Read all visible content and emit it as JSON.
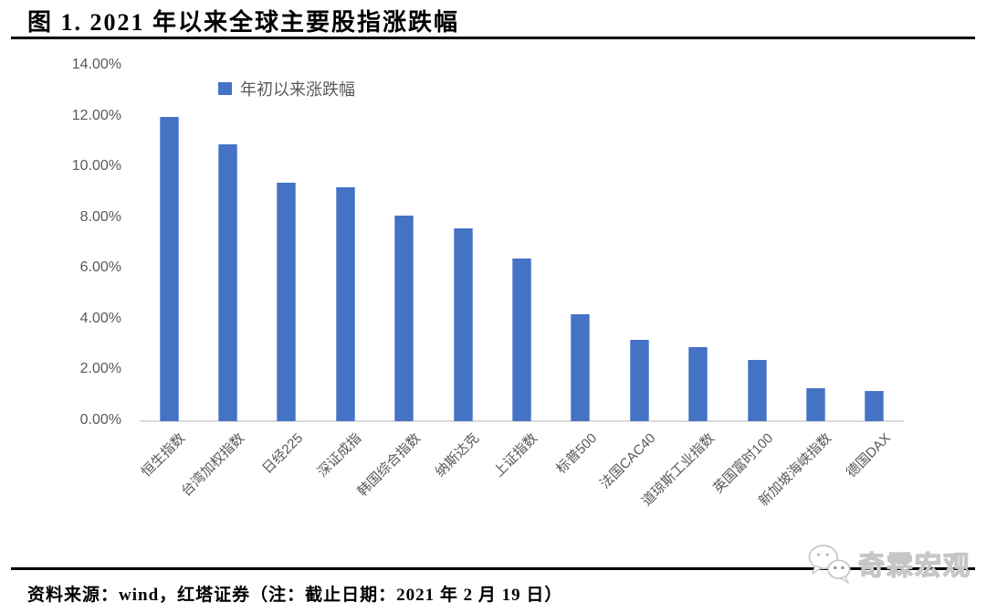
{
  "title": "图 1. 2021 年以来全球主要股指涨跌幅",
  "chart_data": {
    "type": "bar",
    "title": "图 1. 2021 年以来全球主要股指涨跌幅",
    "legend": "年初以来涨跌幅",
    "legend_position": "top",
    "bar_color": "#4472C4",
    "categories": [
      "恒生指数",
      "台湾加权指数",
      "日经225",
      "深证成指",
      "韩国综合指数",
      "纳斯达克",
      "上证指数",
      "标普500",
      "法国CAC40",
      "道琼斯工业指数",
      "英国富时100",
      "新加坡海峡指数",
      "德国DAX"
    ],
    "values": [
      12.0,
      10.9,
      9.4,
      9.2,
      8.1,
      7.6,
      6.4,
      4.2,
      3.2,
      2.9,
      2.4,
      1.3,
      1.2
    ],
    "unit": "%",
    "xlabel": "",
    "ylabel": "",
    "ylim": [
      0,
      14
    ],
    "y_tick_step": 2,
    "y_ticks": [
      "0.00%",
      "2.00%",
      "4.00%",
      "6.00%",
      "8.00%",
      "10.00%",
      "12.00%",
      "14.00%"
    ],
    "grid": false,
    "x_label_rotation": 45
  },
  "footer": {
    "source": "资料来源：wind，红塔证券（注：截止日期：2021 年 2 月 19 日）",
    "watermark": "奇霖宏观"
  },
  "colors": {
    "bar": "#4472C4",
    "axis_text": "#595959",
    "baseline": "#D9D9D9",
    "rule": "#000000"
  }
}
